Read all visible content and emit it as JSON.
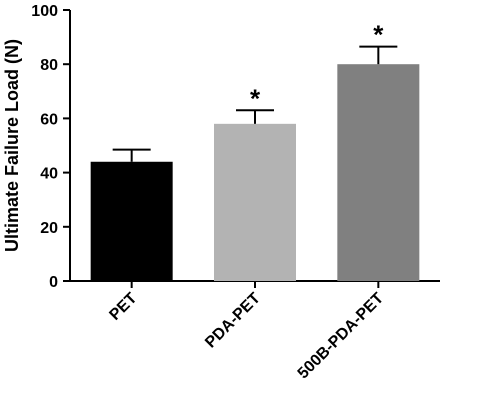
{
  "chart_data": {
    "type": "bar",
    "title": "",
    "xlabel": "",
    "ylabel": "Ultimate Failure Load (N)",
    "ylim": [
      0,
      100
    ],
    "yticks": [
      0,
      20,
      40,
      60,
      80,
      100
    ],
    "categories": [
      "PET",
      "PDA-PET",
      "500B-PDA-PET"
    ],
    "values": [
      44,
      58,
      80
    ],
    "errors": [
      4.5,
      5,
      6.5
    ],
    "annotations": [
      "",
      "*",
      "*"
    ],
    "colors": [
      "#000000",
      "#b3b3b3",
      "#808080"
    ],
    "grid": false,
    "legend": "none"
  }
}
